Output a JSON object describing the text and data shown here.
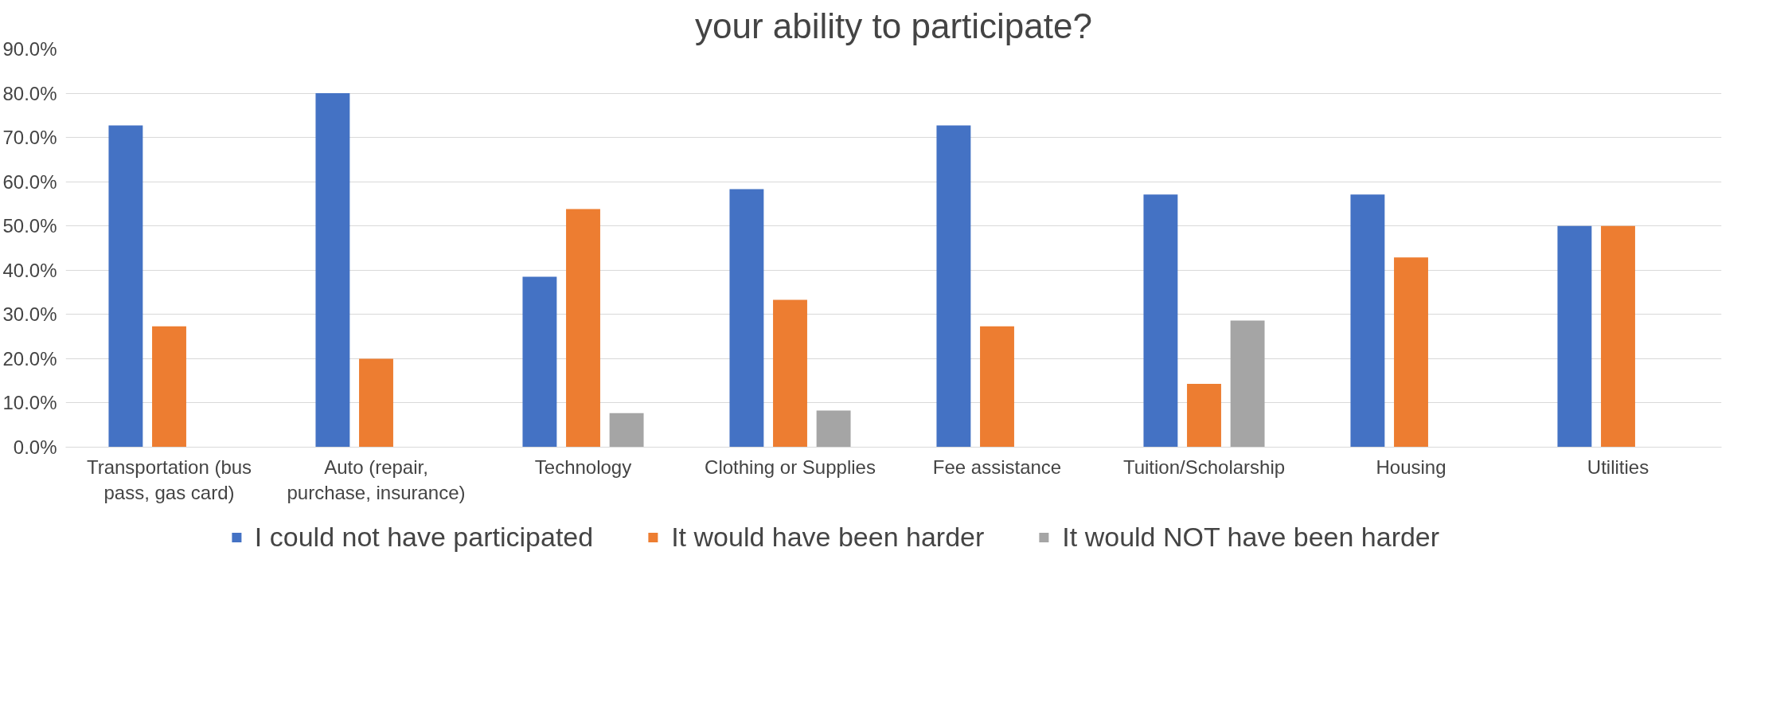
{
  "chart_data": {
    "type": "bar",
    "title": "your ability to participate?",
    "categories": [
      "Transportation (bus pass, gas card)",
      "Auto (repair, purchase, insurance)",
      "Technology",
      "Clothing or Supplies",
      "Fee assistance",
      "Tuition/Scholarship",
      "Housing",
      "Utilities"
    ],
    "series": [
      {
        "name": "I could not have participated",
        "color": "#4472c4",
        "values": [
          72.7,
          80.0,
          38.5,
          58.3,
          72.7,
          57.1,
          57.1,
          50.0
        ]
      },
      {
        "name": "It would have been harder",
        "color": "#ed7d31",
        "values": [
          27.3,
          20.0,
          53.8,
          33.3,
          27.3,
          14.3,
          42.9,
          50.0
        ]
      },
      {
        "name": "It would NOT have been harder",
        "color": "#a5a5a5",
        "values": [
          null,
          null,
          7.7,
          8.3,
          null,
          28.6,
          null,
          null
        ]
      }
    ],
    "ylim": [
      0,
      90
    ],
    "yticks": [
      {
        "value": 0,
        "label": "0.0%"
      },
      {
        "value": 10,
        "label": "10.0%"
      },
      {
        "value": 20,
        "label": "20.0%"
      },
      {
        "value": 30,
        "label": "30.0%"
      },
      {
        "value": 40,
        "label": "40.0%"
      },
      {
        "value": 50,
        "label": "50.0%"
      },
      {
        "value": 60,
        "label": "60.0%"
      },
      {
        "value": 70,
        "label": "70.0%"
      },
      {
        "value": 80,
        "label": "80.0%"
      },
      {
        "value": 90,
        "label": "90.0%"
      }
    ],
    "grid": "y",
    "legend": "bottom"
  }
}
